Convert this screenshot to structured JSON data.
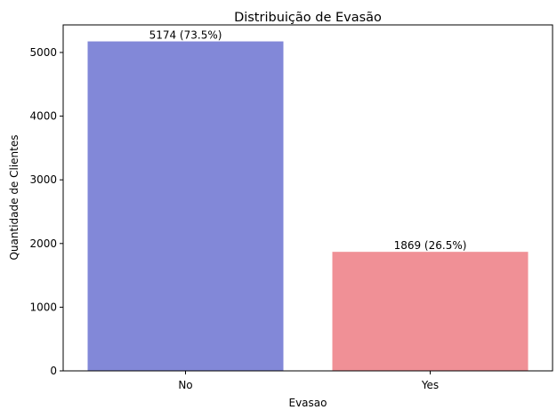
{
  "chart_data": {
    "type": "bar",
    "title": "Distribuição de Evasão",
    "xlabel": "Evasao",
    "ylabel": "Quantidade de Clientes",
    "categories": [
      "No",
      "Yes"
    ],
    "values": [
      5174,
      1869
    ],
    "data_labels": [
      "5174 (73.5%)",
      "1869 (26.5%)"
    ],
    "colors": [
      "#8288d8",
      "#f09096"
    ],
    "ylim": [
      0,
      5433
    ],
    "yticks": [
      0,
      1000,
      2000,
      3000,
      4000,
      5000
    ],
    "grid": false,
    "legend": "none"
  }
}
